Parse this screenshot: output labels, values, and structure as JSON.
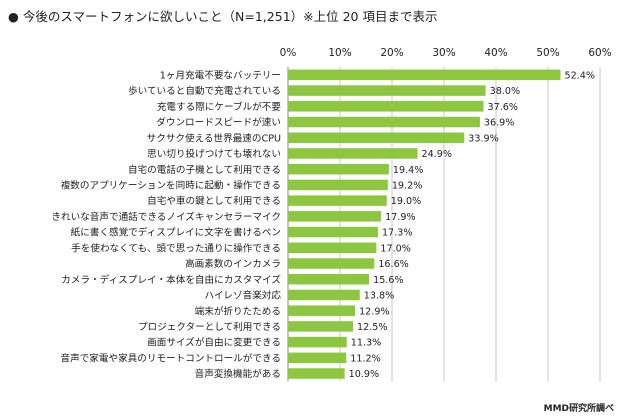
{
  "header": {
    "bullet": "●",
    "title": "今後のスマートフォンに欲しいこと（N=1,251）※上位 20 項目まで表示"
  },
  "source": "MMD研究所調べ",
  "chart_data": {
    "type": "bar",
    "orientation": "horizontal",
    "title": "今後のスマートフォンに欲しいこと（N=1,251）※上位 20 項目まで表示",
    "xlim": [
      0,
      60
    ],
    "xticks": [
      0,
      10,
      20,
      30,
      40,
      50,
      60
    ],
    "tick_labels": [
      "0%",
      "10%",
      "20%",
      "30%",
      "40%",
      "50%",
      "60%"
    ],
    "grid": true,
    "bar_color": "#8dc63f",
    "categories": [
      "1ヶ月充電不要なバッテリー",
      "歩いていると自動で充電されている",
      "充電する際にケーブルが不要",
      "ダウンロードスピードが速い",
      "サクサク使える世界最速のCPU",
      "思い切り投げつけても壊れない",
      "自宅の電話の子機として利用できる",
      "複数のアプリケーションを同時に起動・操作できる",
      "自宅や車の鍵として利用できる",
      "きれいな音声で通話できるノイズキャンセラーマイク",
      "紙に書く感覚でディスプレイに文字を書けるペン",
      "手を使わなくても、頭で思った通りに操作できる",
      "高画素数のインカメラ",
      "カメラ・ディスプレイ・本体を自由にカスタマイズ",
      "ハイレゾ音楽対応",
      "端末が折りたためる",
      "プロジェクターとして利用できる",
      "画面サイズが自由に変更できる",
      "音声で家電や家具のリモートコントロールができる",
      "音声変換機能がある"
    ],
    "values": [
      52.4,
      38.0,
      37.6,
      36.9,
      33.9,
      24.9,
      19.4,
      19.2,
      19.0,
      17.9,
      17.3,
      17.0,
      16.6,
      15.6,
      13.8,
      12.9,
      12.5,
      11.3,
      11.2,
      10.9
    ],
    "value_labels": [
      "52.4%",
      "38.0%",
      "37.6%",
      "36.9%",
      "33.9%",
      "24.9%",
      "19.4%",
      "19.2%",
      "19.0%",
      "17.9%",
      "17.3%",
      "17.0%",
      "16.6%",
      "15.6%",
      "13.8%",
      "12.9%",
      "12.5%",
      "11.3%",
      "11.2%",
      "10.9%"
    ]
  }
}
